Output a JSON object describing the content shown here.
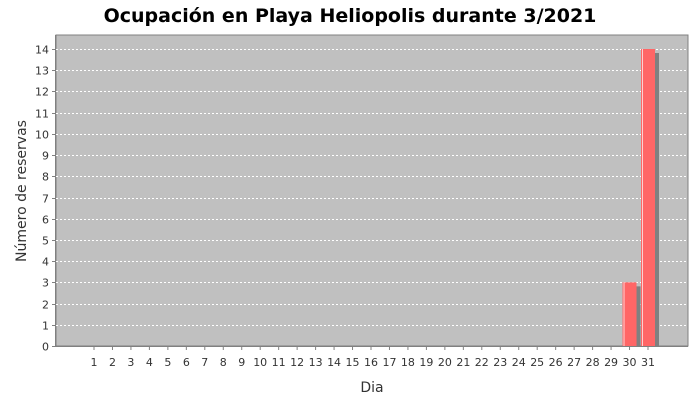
{
  "colors": {
    "plot_background": "#c0c0c0",
    "gridline": "#ffffff",
    "bar_fill": "#ff6666",
    "bar_highlight": "#ffd0d0",
    "bar_shadow": "#808080",
    "axis_line": "#808080",
    "text": "#333333"
  },
  "chart_data": {
    "type": "bar",
    "title": "Ocupación en Playa Heliopolis durante 3/2021",
    "xlabel": "Dia",
    "ylabel": "Número de reservas",
    "categories": [
      "1",
      "2",
      "3",
      "4",
      "5",
      "6",
      "7",
      "8",
      "9",
      "10",
      "11",
      "12",
      "13",
      "14",
      "15",
      "16",
      "17",
      "18",
      "19",
      "20",
      "21",
      "22",
      "23",
      "24",
      "25",
      "26",
      "27",
      "28",
      "29",
      "30",
      "31"
    ],
    "values": [
      0,
      0,
      0,
      0,
      0,
      0,
      0,
      0,
      0,
      0,
      0,
      0,
      0,
      0,
      0,
      0,
      0,
      0,
      0,
      0,
      0,
      0,
      0,
      0,
      0,
      0,
      0,
      0,
      0,
      3,
      14
    ],
    "ylim": [
      0,
      14
    ],
    "yticks": [
      "0",
      "1",
      "2",
      "3",
      "4",
      "5",
      "6",
      "7",
      "8",
      "9",
      "10",
      "11",
      "12",
      "13",
      "14"
    ],
    "grid": true,
    "legend": "none"
  }
}
